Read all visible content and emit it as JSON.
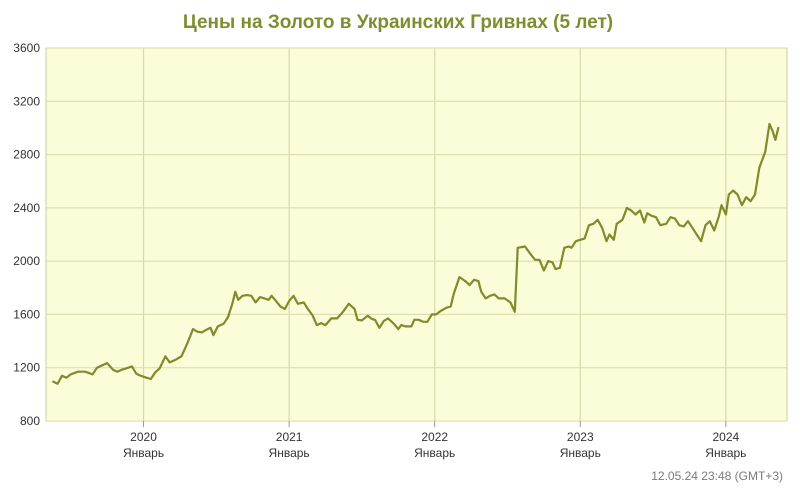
{
  "chart_data": {
    "type": "line",
    "title": "Цены на Золото в Украинских Гривнах (5 лет)",
    "xlabel": "",
    "ylabel": "",
    "ylim": [
      800,
      3600
    ],
    "yticks": [
      800,
      1200,
      1600,
      2000,
      2400,
      2800,
      3200,
      3600
    ],
    "xlim": [
      2019.33,
      2024.42
    ],
    "xticks": [
      {
        "year": "2020",
        "month": "Январь",
        "x": 2020.0
      },
      {
        "year": "2021",
        "month": "Январь",
        "x": 2021.0
      },
      {
        "year": "2022",
        "month": "Январь",
        "x": 2022.0
      },
      {
        "year": "2023",
        "month": "Январь",
        "x": 2023.0
      },
      {
        "year": "2024",
        "month": "Январь",
        "x": 2024.0
      }
    ],
    "grid": true,
    "colors": {
      "line": "#7e8c2a",
      "background": "#fbfcd8",
      "grid": "#d6dbaa",
      "title": "#7d8e2e"
    },
    "series": [
      {
        "points": [
          [
            2019.38,
            1095
          ],
          [
            2019.41,
            1080
          ],
          [
            2019.44,
            1140
          ],
          [
            2019.47,
            1125
          ],
          [
            2019.5,
            1150
          ],
          [
            2019.55,
            1170
          ],
          [
            2019.6,
            1170
          ],
          [
            2019.65,
            1150
          ],
          [
            2019.68,
            1200
          ],
          [
            2019.71,
            1215
          ],
          [
            2019.75,
            1235
          ],
          [
            2019.79,
            1185
          ],
          [
            2019.82,
            1170
          ],
          [
            2019.85,
            1185
          ],
          [
            2019.88,
            1195
          ],
          [
            2019.92,
            1210
          ],
          [
            2019.95,
            1155
          ],
          [
            2019.98,
            1140
          ],
          [
            2020.02,
            1125
          ],
          [
            2020.05,
            1115
          ],
          [
            2020.08,
            1165
          ],
          [
            2020.11,
            1195
          ],
          [
            2020.15,
            1285
          ],
          [
            2020.18,
            1240
          ],
          [
            2020.22,
            1260
          ],
          [
            2020.26,
            1285
          ],
          [
            2020.3,
            1380
          ],
          [
            2020.34,
            1490
          ],
          [
            2020.37,
            1470
          ],
          [
            2020.4,
            1465
          ],
          [
            2020.44,
            1490
          ],
          [
            2020.46,
            1500
          ],
          [
            2020.48,
            1445
          ],
          [
            2020.51,
            1510
          ],
          [
            2020.55,
            1530
          ],
          [
            2020.58,
            1580
          ],
          [
            2020.61,
            1680
          ],
          [
            2020.63,
            1770
          ],
          [
            2020.65,
            1710
          ],
          [
            2020.68,
            1740
          ],
          [
            2020.71,
            1745
          ],
          [
            2020.74,
            1740
          ],
          [
            2020.77,
            1690
          ],
          [
            2020.8,
            1730
          ],
          [
            2020.83,
            1720
          ],
          [
            2020.86,
            1710
          ],
          [
            2020.88,
            1740
          ],
          [
            2020.91,
            1700
          ],
          [
            2020.94,
            1660
          ],
          [
            2020.97,
            1640
          ],
          [
            2021.0,
            1700
          ],
          [
            2021.03,
            1740
          ],
          [
            2021.06,
            1680
          ],
          [
            2021.1,
            1690
          ],
          [
            2021.13,
            1640
          ],
          [
            2021.16,
            1595
          ],
          [
            2021.19,
            1520
          ],
          [
            2021.22,
            1535
          ],
          [
            2021.25,
            1520
          ],
          [
            2021.29,
            1570
          ],
          [
            2021.33,
            1570
          ],
          [
            2021.37,
            1620
          ],
          [
            2021.41,
            1680
          ],
          [
            2021.45,
            1640
          ],
          [
            2021.47,
            1560
          ],
          [
            2021.5,
            1555
          ],
          [
            2021.54,
            1590
          ],
          [
            2021.57,
            1565
          ],
          [
            2021.59,
            1560
          ],
          [
            2021.62,
            1500
          ],
          [
            2021.65,
            1550
          ],
          [
            2021.68,
            1570
          ],
          [
            2021.72,
            1530
          ],
          [
            2021.75,
            1490
          ],
          [
            2021.77,
            1520
          ],
          [
            2021.8,
            1510
          ],
          [
            2021.84,
            1510
          ],
          [
            2021.86,
            1560
          ],
          [
            2021.89,
            1560
          ],
          [
            2021.92,
            1545
          ],
          [
            2021.95,
            1545
          ],
          [
            2021.98,
            1600
          ],
          [
            2022.01,
            1600
          ],
          [
            2022.04,
            1625
          ],
          [
            2022.08,
            1650
          ],
          [
            2022.11,
            1660
          ],
          [
            2022.13,
            1750
          ],
          [
            2022.17,
            1880
          ],
          [
            2022.21,
            1850
          ],
          [
            2022.24,
            1820
          ],
          [
            2022.27,
            1860
          ],
          [
            2022.3,
            1850
          ],
          [
            2022.32,
            1770
          ],
          [
            2022.35,
            1720
          ],
          [
            2022.38,
            1740
          ],
          [
            2022.41,
            1750
          ],
          [
            2022.44,
            1720
          ],
          [
            2022.48,
            1720
          ],
          [
            2022.52,
            1690
          ],
          [
            2022.55,
            1620
          ],
          [
            2022.57,
            2100
          ],
          [
            2022.62,
            2110
          ],
          [
            2022.66,
            2050
          ],
          [
            2022.69,
            2010
          ],
          [
            2022.72,
            2010
          ],
          [
            2022.75,
            1930
          ],
          [
            2022.78,
            2000
          ],
          [
            2022.81,
            1990
          ],
          [
            2022.83,
            1940
          ],
          [
            2022.86,
            1950
          ],
          [
            2022.89,
            2100
          ],
          [
            2022.92,
            2110
          ],
          [
            2022.94,
            2100
          ],
          [
            2022.97,
            2150
          ],
          [
            2023.0,
            2160
          ],
          [
            2023.03,
            2170
          ],
          [
            2023.06,
            2270
          ],
          [
            2023.09,
            2280
          ],
          [
            2023.12,
            2310
          ],
          [
            2023.15,
            2250
          ],
          [
            2023.18,
            2150
          ],
          [
            2023.2,
            2200
          ],
          [
            2023.23,
            2160
          ],
          [
            2023.25,
            2280
          ],
          [
            2023.29,
            2310
          ],
          [
            2023.32,
            2400
          ],
          [
            2023.35,
            2380
          ],
          [
            2023.38,
            2350
          ],
          [
            2023.41,
            2380
          ],
          [
            2023.44,
            2290
          ],
          [
            2023.46,
            2360
          ],
          [
            2023.49,
            2340
          ],
          [
            2023.52,
            2330
          ],
          [
            2023.55,
            2270
          ],
          [
            2023.59,
            2280
          ],
          [
            2023.62,
            2330
          ],
          [
            2023.65,
            2320
          ],
          [
            2023.68,
            2270
          ],
          [
            2023.71,
            2260
          ],
          [
            2023.74,
            2300
          ],
          [
            2023.77,
            2250
          ],
          [
            2023.8,
            2200
          ],
          [
            2023.83,
            2150
          ],
          [
            2023.86,
            2270
          ],
          [
            2023.89,
            2300
          ],
          [
            2023.92,
            2230
          ],
          [
            2023.95,
            2330
          ],
          [
            2023.97,
            2420
          ],
          [
            2024.0,
            2350
          ],
          [
            2024.02,
            2500
          ],
          [
            2024.05,
            2530
          ],
          [
            2024.08,
            2500
          ],
          [
            2024.11,
            2420
          ],
          [
            2024.14,
            2480
          ],
          [
            2024.17,
            2450
          ],
          [
            2024.2,
            2500
          ],
          [
            2024.23,
            2700
          ],
          [
            2024.27,
            2820
          ],
          [
            2024.3,
            3030
          ],
          [
            2024.32,
            2980
          ],
          [
            2024.34,
            2910
          ],
          [
            2024.36,
            3000
          ]
        ]
      }
    ],
    "timestamp": "12.05.24 23:48 (GMT+3)"
  }
}
